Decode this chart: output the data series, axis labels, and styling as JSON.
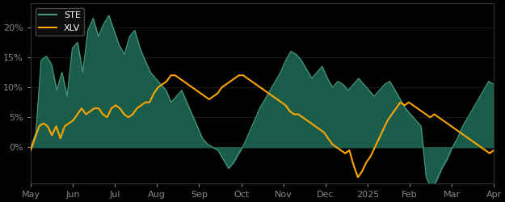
{
  "background_color": "#000000",
  "plot_bg_color": "#000000",
  "ste_fill_color": "#1a5c4a",
  "ste_line_color": "#4a9a80",
  "xlv_line_color": "#FFA500",
  "ste_label": "STE",
  "xlv_label": "XLV",
  "ylabel_color": "#ffffff",
  "tick_color": "#888888",
  "legend_edge_color": "#555555",
  "yticks": [
    0,
    5,
    10,
    15,
    20
  ],
  "ytick_labels": [
    "0%",
    "5%",
    "10%",
    "15%",
    "20%"
  ],
  "xlabels": [
    "May",
    "Jun",
    "Jul",
    "Aug",
    "Sep",
    "Oct",
    "Nov",
    "Dec",
    "2025",
    "Feb",
    "Mar",
    "Apr"
  ],
  "ylim": [
    -6,
    24
  ],
  "ste_data": [
    0.0,
    2.5,
    14.5,
    15.2,
    13.8,
    9.5,
    12.5,
    8.5,
    16.5,
    17.5,
    12.5,
    19.5,
    21.5,
    18.5,
    20.5,
    22.0,
    19.5,
    17.0,
    15.5,
    18.5,
    19.5,
    16.5,
    14.5,
    12.5,
    11.5,
    10.5,
    9.5,
    7.5,
    8.5,
    9.5,
    7.5,
    5.5,
    3.5,
    1.5,
    0.5,
    0.0,
    -0.5,
    -2.0,
    -3.5,
    -2.5,
    -1.0,
    0.5,
    2.5,
    4.5,
    6.5,
    8.0,
    9.5,
    11.0,
    12.5,
    14.5,
    16.0,
    15.5,
    14.5,
    13.0,
    11.5,
    12.5,
    13.5,
    11.5,
    10.0,
    11.0,
    10.5,
    9.5,
    10.5,
    11.5,
    10.5,
    9.5,
    8.5,
    9.5,
    10.5,
    11.0,
    9.5,
    8.0,
    6.5,
    5.5,
    4.5,
    3.5,
    -5.0,
    -7.0,
    -5.5,
    -3.5,
    -2.0,
    0.0,
    1.5,
    3.5,
    5.0,
    6.5,
    8.0,
    9.5,
    11.0,
    10.5
  ],
  "xlv_data": [
    -0.5,
    1.5,
    3.5,
    4.0,
    3.5,
    2.0,
    3.5,
    1.5,
    3.5,
    4.0,
    4.5,
    5.5,
    6.5,
    5.5,
    6.0,
    6.5,
    6.5,
    5.5,
    5.0,
    6.5,
    7.0,
    6.5,
    5.5,
    5.0,
    5.5,
    6.5,
    7.0,
    7.5,
    7.5,
    9.0,
    10.0,
    10.5,
    11.0,
    12.0,
    12.0,
    11.5,
    11.0,
    10.5,
    10.0,
    9.5,
    9.0,
    8.5,
    8.0,
    8.5,
    9.0,
    10.0,
    10.5,
    11.0,
    11.5,
    12.0,
    12.0,
    11.5,
    11.0,
    10.5,
    10.0,
    9.5,
    9.0,
    8.5,
    8.0,
    7.5,
    7.0,
    6.0,
    5.5,
    5.5,
    5.0,
    4.5,
    4.0,
    3.5,
    3.0,
    2.5,
    1.5,
    0.5,
    0.0,
    -0.5,
    -1.0,
    -0.5,
    -3.0,
    -5.0,
    -4.0,
    -2.5,
    -1.5,
    0.0,
    1.5,
    3.0,
    4.5,
    5.5,
    6.5,
    7.5,
    7.0,
    7.5,
    7.0,
    6.5,
    6.0,
    5.5,
    5.0,
    5.5,
    5.0,
    4.5,
    4.0,
    3.5,
    3.0,
    2.5,
    2.0,
    1.5,
    1.0,
    0.5,
    0.0,
    -0.5,
    -1.0,
    -0.5
  ]
}
